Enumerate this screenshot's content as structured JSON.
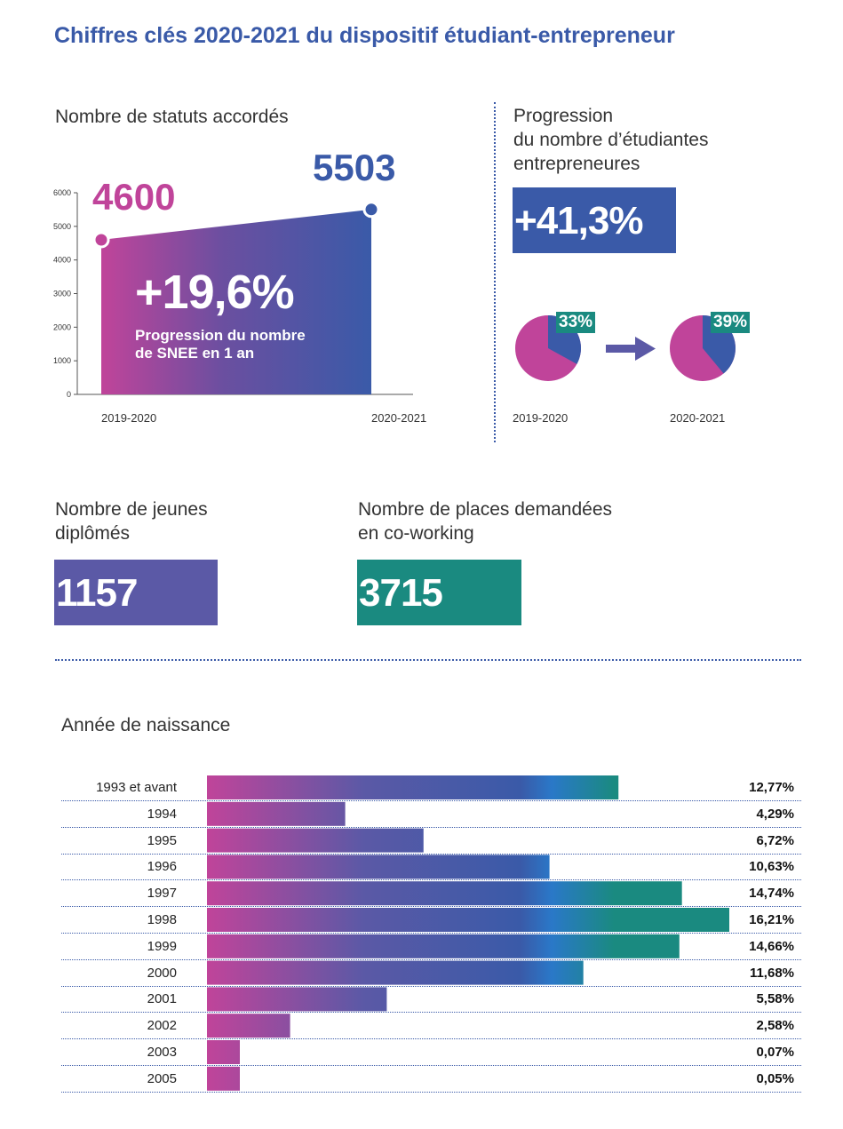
{
  "title": "Chiffres clés 2020-2021 du dispositif étudiant-entrepreneur",
  "statuts": {
    "label": "Nombre de statuts accordés",
    "value_start": "4600",
    "value_end": "5503",
    "progression": "+19,6%",
    "progression_text_line1": "Progression du nombre",
    "progression_text_line2": "de SNEE en 1 an",
    "year_start": "2019-2020",
    "year_end": "2020-2021"
  },
  "etudiantes": {
    "label_line1": "Progression",
    "label_line2": "du nombre d’étudiantes",
    "label_line3": "entrepreneures",
    "value": "+41,3%",
    "pie_start_pct": "33%",
    "pie_end_pct": "39%",
    "year_start": "2019-2020",
    "year_end": "2020-2021"
  },
  "diplomes": {
    "label_line1": "Nombre de jeunes",
    "label_line2": "diplômés",
    "value": "1157"
  },
  "coworking": {
    "label_line1": "Nombre de places demandées",
    "label_line2": "en co-working",
    "value": "3715"
  },
  "naissance": {
    "label": "Année de naissance"
  },
  "colors": {
    "blue": "#3a5aa8",
    "magenta": "#c0449a",
    "teal": "#1a8a80",
    "violet": "#5b59a6"
  },
  "chart_data": [
    {
      "type": "area",
      "categories": [
        "2019-2020",
        "2020-2021"
      ],
      "values": [
        4600,
        5503
      ],
      "ylim": [
        0,
        6000
      ],
      "yticks": [
        0,
        1000,
        2000,
        3000,
        4000,
        5000,
        6000
      ],
      "grid": false
    },
    {
      "type": "pie",
      "categories": [
        "2019-2020",
        "2020-2021"
      ],
      "values": [
        33,
        39
      ]
    },
    {
      "type": "bar",
      "orientation": "horizontal",
      "categories": [
        "1993 et avant",
        "1994",
        "1995",
        "1996",
        "1997",
        "1998",
        "1999",
        "2000",
        "2001",
        "2002",
        "2003",
        "2005"
      ],
      "values": [
        12.77,
        4.29,
        6.72,
        10.63,
        14.74,
        16.21,
        14.66,
        11.68,
        5.58,
        2.58,
        0.07,
        0.05
      ],
      "value_labels": [
        "12,77%",
        "4,29%",
        "6,72%",
        "10,63%",
        "14,74%",
        "16,21%",
        "14,66%",
        "11,68%",
        "5,58%",
        "2,58%",
        "0,07%",
        "0,05%"
      ]
    }
  ]
}
